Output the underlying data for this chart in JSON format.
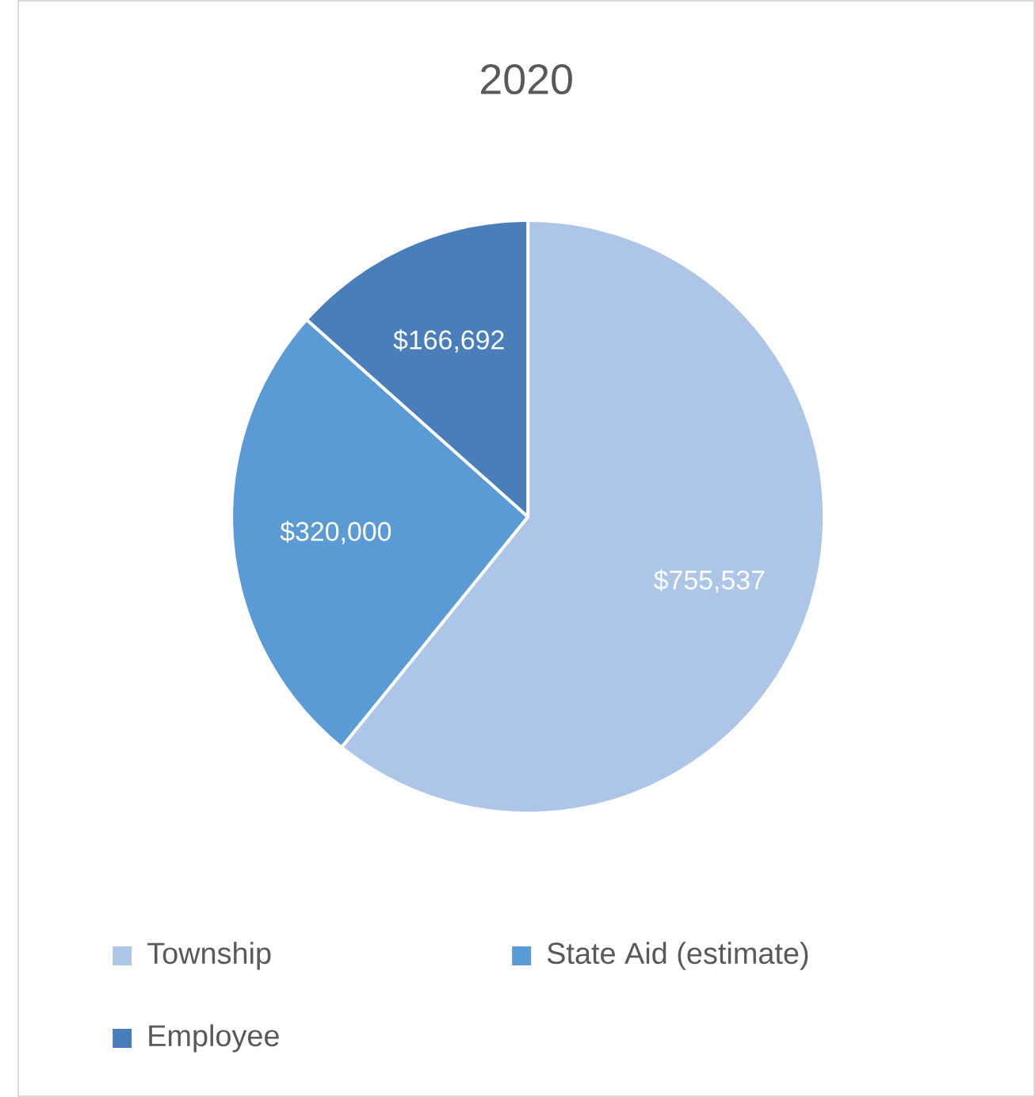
{
  "chart_data": {
    "type": "pie",
    "title": "2020",
    "categories": [
      "Township",
      "State Aid (estimate)",
      "Employee"
    ],
    "values": [
      755537,
      320000,
      166692
    ],
    "colors": [
      "#adc5e6",
      "#5b9bd5",
      "#4a7ebb"
    ],
    "value_labels": [
      "$755,537",
      "$320,000",
      "$166,692"
    ],
    "legend": "bottom"
  }
}
